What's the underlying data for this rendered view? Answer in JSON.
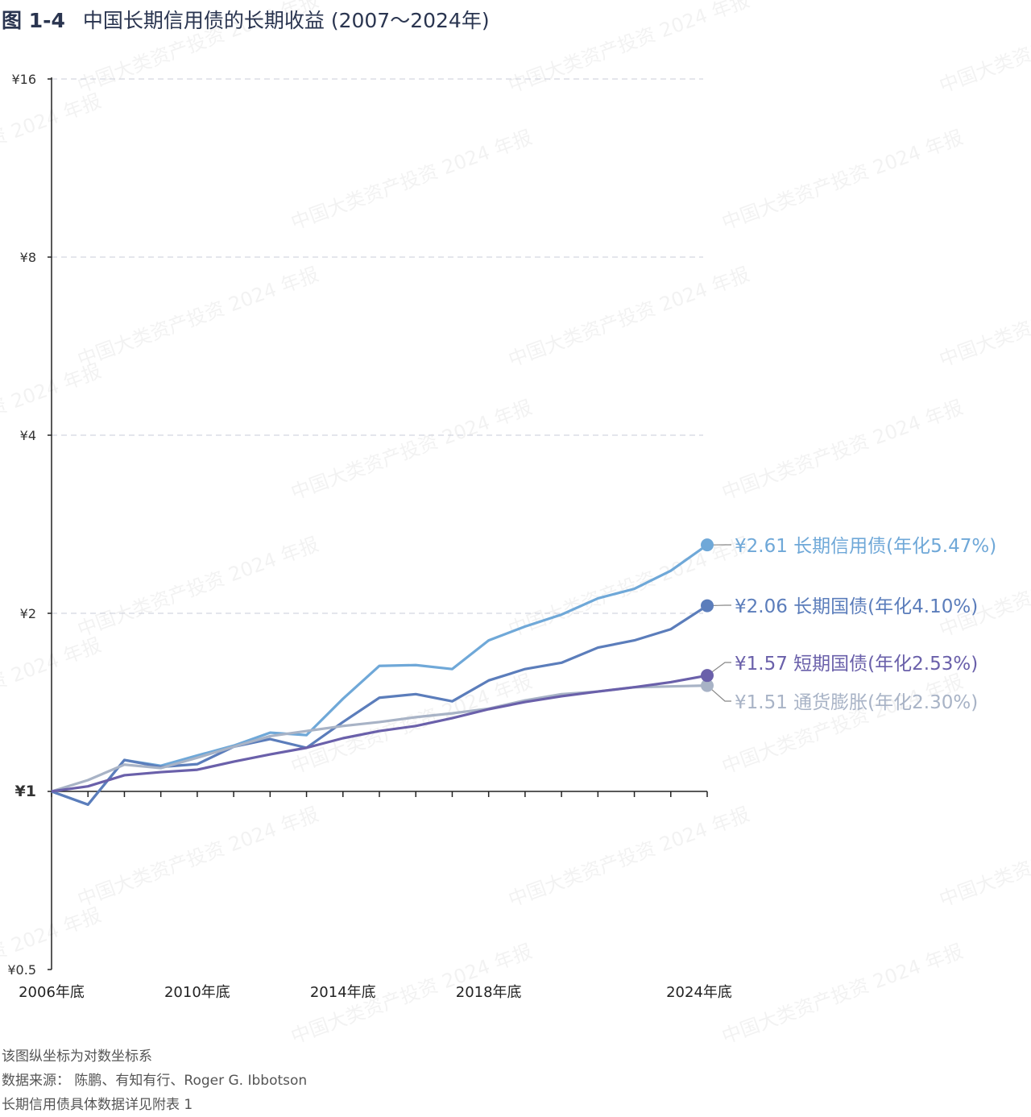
{
  "title": {
    "figure": "图 1-4",
    "text": "中国长期信用债的长期收益 (2007～2024年)"
  },
  "watermark": "中国大类资产投资 2024 年报",
  "notes": [
    "该图纵坐标为对数坐标系",
    "数据来源：  陈鹏、有知有行、Roger G. Ibbotson",
    "长期信用债具体数据详见附表 1"
  ],
  "chart_data": {
    "type": "line",
    "title": "中国长期信用债的长期收益 (2007～2024年)",
    "yscale": "log",
    "ylim": [
      0.5,
      16
    ],
    "yticks": [
      0.5,
      1,
      2,
      4,
      8,
      16
    ],
    "ytick_labels": [
      "¥0.5",
      "¥1",
      "¥2",
      "¥4",
      "¥8",
      "¥16"
    ],
    "x": [
      2006,
      2007,
      2008,
      2009,
      2010,
      2011,
      2012,
      2013,
      2014,
      2015,
      2016,
      2017,
      2018,
      2019,
      2020,
      2021,
      2022,
      2023,
      2024
    ],
    "xtick_years": [
      2006,
      2010,
      2014,
      2018,
      2024
    ],
    "xtick_labels": [
      "2006年底",
      "2010年底",
      "2014年底",
      "2018年底",
      "2024年底"
    ],
    "grid": true,
    "series": [
      {
        "name": "长期信用债",
        "color": "#6fa8d8",
        "end_label": "¥2.61 长期信用债(年化5.47%)",
        "values": [
          1.0,
          0.95,
          1.13,
          1.105,
          1.15,
          1.195,
          1.257,
          1.245,
          1.434,
          1.63,
          1.635,
          1.61,
          1.8,
          1.9,
          1.99,
          2.12,
          2.2,
          2.36,
          2.61
        ]
      },
      {
        "name": "长期国债",
        "color": "#5b7dbb",
        "end_label": "¥2.06 长期国债(年化4.10%)",
        "values": [
          1.0,
          0.95,
          1.13,
          1.1,
          1.112,
          1.19,
          1.226,
          1.185,
          1.31,
          1.44,
          1.46,
          1.42,
          1.54,
          1.61,
          1.65,
          1.75,
          1.8,
          1.88,
          2.06
        ]
      },
      {
        "name": "通货膨胀",
        "color": "#a8b3c6",
        "end_label": "¥1.51  通货膨胀(年化2.30%)",
        "values": [
          1.0,
          1.045,
          1.11,
          1.095,
          1.14,
          1.19,
          1.24,
          1.265,
          1.29,
          1.31,
          1.335,
          1.355,
          1.38,
          1.425,
          1.46,
          1.475,
          1.5,
          1.505,
          1.51
        ]
      },
      {
        "name": "短期国债",
        "color": "#6a60aa",
        "end_label": "¥1.57  短期国债(年化2.53%)",
        "values": [
          1.0,
          1.02,
          1.065,
          1.078,
          1.088,
          1.123,
          1.155,
          1.185,
          1.23,
          1.265,
          1.29,
          1.33,
          1.377,
          1.416,
          1.448,
          1.475,
          1.5,
          1.53,
          1.57
        ]
      }
    ]
  }
}
